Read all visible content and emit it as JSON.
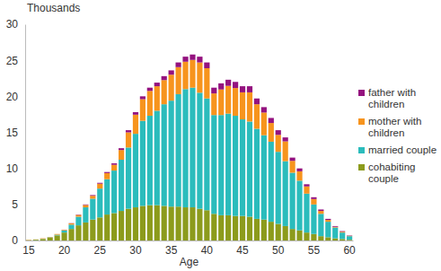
{
  "chart_data": {
    "type": "bar",
    "stacked": true,
    "legend": "right",
    "y_label": "Thousands",
    "x_label": "Age",
    "categories": [
      "15",
      null,
      null,
      null,
      null,
      "20",
      null,
      null,
      null,
      null,
      "25",
      null,
      null,
      null,
      null,
      "30",
      null,
      null,
      null,
      null,
      "35",
      null,
      null,
      null,
      null,
      "40",
      null,
      null,
      null,
      null,
      "45",
      null,
      null,
      null,
      null,
      "50",
      null,
      null,
      null,
      null,
      "55",
      null,
      null,
      null,
      null,
      "60"
    ],
    "ylim": [
      0,
      30
    ],
    "yticks": [
      0,
      5,
      10,
      15,
      20,
      25,
      30
    ],
    "series": [
      {
        "name": "cohabiting couple",
        "color": "#8c9b1c",
        "values": [
          0.05,
          0.1,
          0.2,
          0.4,
          0.7,
          1.1,
          1.6,
          2.1,
          2.5,
          2.9,
          3.2,
          3.6,
          3.8,
          4.1,
          4.4,
          4.6,
          4.8,
          4.9,
          4.9,
          4.8,
          4.7,
          4.7,
          4.6,
          4.6,
          4.4,
          4.2,
          3.7,
          3.5,
          3.5,
          3.4,
          3.4,
          3.3,
          3.0,
          2.9,
          2.6,
          2.3,
          2.0,
          1.6,
          1.4,
          1.1,
          0.9,
          0.6,
          0.45,
          0.3,
          0.2,
          0.1
        ]
      },
      {
        "name": "married couple",
        "color": "#2bbcbc",
        "values": [
          0.01,
          0.02,
          0.03,
          0.05,
          0.1,
          0.3,
          0.6,
          1.2,
          2.1,
          2.9,
          4.0,
          4.9,
          5.9,
          7.1,
          8.5,
          10.2,
          11.8,
          12.4,
          13.1,
          14.1,
          14.7,
          15.6,
          16.4,
          16.6,
          16.1,
          15.5,
          13.7,
          13.9,
          14.1,
          13.9,
          13.4,
          13.2,
          12.5,
          11.7,
          11.1,
          10.0,
          9.0,
          7.8,
          6.9,
          5.4,
          4.1,
          3.1,
          2.15,
          1.5,
          0.9,
          0.5
        ]
      },
      {
        "name": "mother with children",
        "color": "#f7941d",
        "values": [
          0.04,
          0.03,
          0.07,
          0.05,
          0.1,
          0.08,
          0.17,
          0.25,
          0.33,
          0.4,
          0.68,
          0.85,
          0.8,
          1.35,
          2.1,
          2.65,
          3.0,
          3.45,
          3.4,
          3.35,
          3.6,
          3.75,
          3.8,
          3.85,
          4.2,
          4.2,
          3.0,
          3.55,
          3.85,
          3.85,
          3.75,
          4.05,
          3.4,
          3.15,
          2.6,
          2.35,
          2.75,
          1.65,
          1.3,
          1.0,
          0.75,
          0.4,
          0.25,
          0.1,
          0.12,
          0.05
        ]
      },
      {
        "name": "father with children",
        "color": "#94127f",
        "values": [
          0,
          0,
          0,
          0,
          0,
          0.02,
          0.03,
          0.05,
          0.07,
          0.1,
          0.12,
          0.15,
          0.2,
          0.25,
          0.3,
          0.35,
          0.4,
          0.45,
          0.5,
          0.55,
          0.6,
          0.65,
          0.7,
          0.75,
          0.8,
          0.8,
          0.8,
          0.85,
          0.85,
          0.85,
          0.85,
          0.85,
          0.8,
          0.75,
          0.7,
          0.65,
          0.55,
          0.45,
          0.4,
          0.3,
          0.25,
          0.2,
          0.15,
          0.1,
          0.08,
          0.05
        ]
      }
    ]
  }
}
